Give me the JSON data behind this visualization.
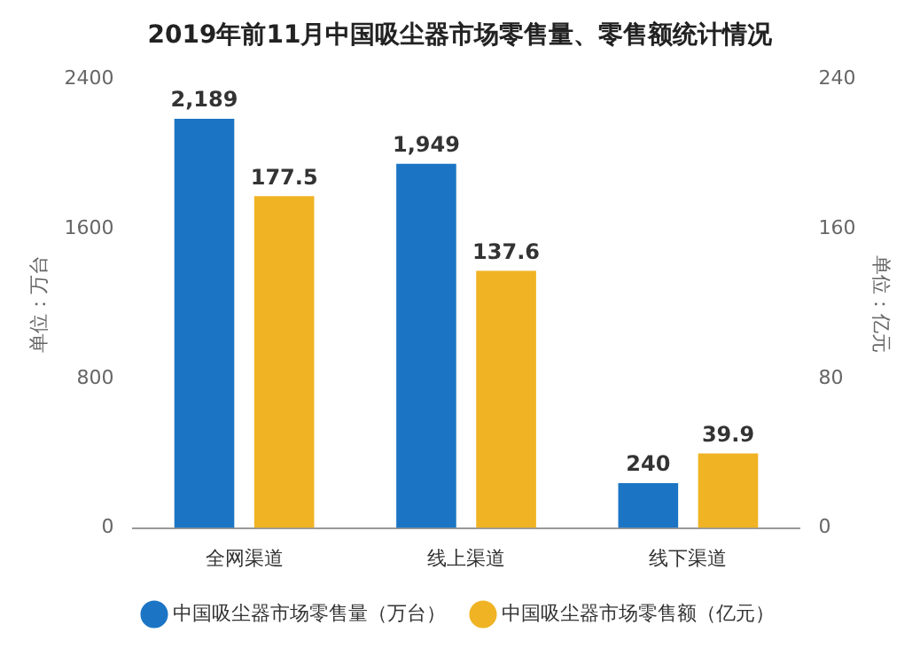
{
  "chart_data": {
    "type": "bar",
    "title": "2019年前11月中国吸尘器市场零售量、零售额统计情况",
    "ylabel": "单位：万台",
    "y2label": "单位：亿元",
    "categories": [
      "全网渠道",
      "线上渠道",
      "线下渠道"
    ],
    "series": [
      {
        "name": "中国吸尘器市场零售量（万台）",
        "color": "#1b75c4",
        "values": [
          2189,
          1949,
          240
        ],
        "value_labels": [
          "2,189",
          "1,949",
          "240"
        ]
      },
      {
        "name": "中国吸尘器市场零售额（亿元）",
        "color": "#f0b323",
        "values": [
          177.5,
          137.6,
          39.9
        ],
        "value_labels": [
          "177.5",
          "137.6",
          "39.9"
        ],
        "axis": "y2"
      }
    ],
    "ylim": [
      0,
      2400
    ],
    "yticks": [
      0,
      800,
      1600,
      2400
    ],
    "y2lim": [
      0,
      240
    ],
    "y2ticks": [
      0,
      80,
      160,
      240
    ],
    "legend": "bottom",
    "grid": false
  }
}
